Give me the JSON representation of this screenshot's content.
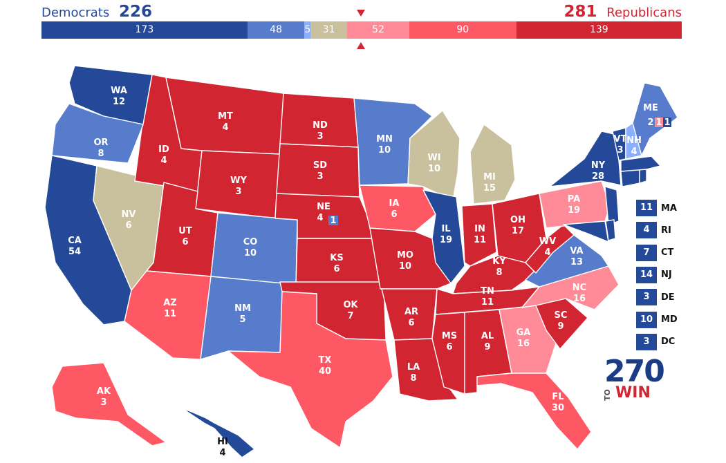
{
  "header": {
    "dem_label": "Democrats",
    "dem_total": "226",
    "rep_total": "281",
    "rep_label": "Republicans"
  },
  "colors": {
    "safe_d": "#244999",
    "likely_d": "#577ccc",
    "lean_d": "#8aafff",
    "tossup": "#c9c09d",
    "lean_r": "#ff8b98",
    "likely_r": "#ff5865",
    "safe_r": "#d22532"
  },
  "summary_bar": [
    {
      "category": "safe_d",
      "value": 173,
      "label": "173"
    },
    {
      "category": "likely_d",
      "value": 48,
      "label": "48"
    },
    {
      "category": "lean_d",
      "value": 5,
      "label": "5"
    },
    {
      "category": "tossup",
      "value": 31,
      "label": "31"
    },
    {
      "category": "lean_r",
      "value": 52,
      "label": "52"
    },
    {
      "category": "likely_r",
      "value": 90,
      "label": "90"
    },
    {
      "category": "safe_r",
      "value": 139,
      "label": "139"
    }
  ],
  "states": [
    {
      "code": "WA",
      "ev": "12",
      "rating": "safe_d"
    },
    {
      "code": "OR",
      "ev": "8",
      "rating": "likely_d"
    },
    {
      "code": "CA",
      "ev": "54",
      "rating": "safe_d"
    },
    {
      "code": "NV",
      "ev": "6",
      "rating": "tossup"
    },
    {
      "code": "ID",
      "ev": "4",
      "rating": "safe_r"
    },
    {
      "code": "MT",
      "ev": "4",
      "rating": "safe_r"
    },
    {
      "code": "WY",
      "ev": "3",
      "rating": "safe_r"
    },
    {
      "code": "UT",
      "ev": "6",
      "rating": "safe_r"
    },
    {
      "code": "AZ",
      "ev": "11",
      "rating": "likely_r"
    },
    {
      "code": "CO",
      "ev": "10",
      "rating": "likely_d"
    },
    {
      "code": "NM",
      "ev": "5",
      "rating": "likely_d"
    },
    {
      "code": "ND",
      "ev": "3",
      "rating": "safe_r"
    },
    {
      "code": "SD",
      "ev": "3",
      "rating": "safe_r"
    },
    {
      "code": "NE",
      "ev": "4",
      "rating": "safe_r"
    },
    {
      "code": "KS",
      "ev": "6",
      "rating": "safe_r"
    },
    {
      "code": "OK",
      "ev": "7",
      "rating": "safe_r"
    },
    {
      "code": "TX",
      "ev": "40",
      "rating": "likely_r"
    },
    {
      "code": "MN",
      "ev": "10",
      "rating": "likely_d"
    },
    {
      "code": "IA",
      "ev": "6",
      "rating": "likely_r"
    },
    {
      "code": "MO",
      "ev": "10",
      "rating": "safe_r"
    },
    {
      "code": "AR",
      "ev": "6",
      "rating": "safe_r"
    },
    {
      "code": "LA",
      "ev": "8",
      "rating": "safe_r"
    },
    {
      "code": "WI",
      "ev": "10",
      "rating": "tossup"
    },
    {
      "code": "IL",
      "ev": "19",
      "rating": "safe_d"
    },
    {
      "code": "MI",
      "ev": "15",
      "rating": "tossup"
    },
    {
      "code": "IN",
      "ev": "11",
      "rating": "safe_r"
    },
    {
      "code": "OH",
      "ev": "17",
      "rating": "safe_r"
    },
    {
      "code": "KY",
      "ev": "8",
      "rating": "safe_r"
    },
    {
      "code": "TN",
      "ev": "11",
      "rating": "safe_r"
    },
    {
      "code": "MS",
      "ev": "6",
      "rating": "safe_r"
    },
    {
      "code": "AL",
      "ev": "9",
      "rating": "safe_r"
    },
    {
      "code": "GA",
      "ev": "16",
      "rating": "lean_r"
    },
    {
      "code": "FL",
      "ev": "30",
      "rating": "likely_r"
    },
    {
      "code": "SC",
      "ev": "9",
      "rating": "safe_r"
    },
    {
      "code": "NC",
      "ev": "16",
      "rating": "lean_r"
    },
    {
      "code": "VA",
      "ev": "13",
      "rating": "likely_d"
    },
    {
      "code": "WV",
      "ev": "4",
      "rating": "safe_r"
    },
    {
      "code": "PA",
      "ev": "19",
      "rating": "lean_r"
    },
    {
      "code": "NY",
      "ev": "28",
      "rating": "safe_d"
    },
    {
      "code": "VT",
      "ev": "3",
      "rating": "safe_d"
    },
    {
      "code": "NH",
      "ev": "4",
      "rating": "lean_d"
    },
    {
      "code": "ME",
      "ev": "",
      "rating": "likely_d"
    },
    {
      "code": "AK",
      "ev": "3",
      "rating": "likely_r"
    },
    {
      "code": "HI",
      "ev": "4",
      "rating": "safe_d"
    }
  ],
  "maine_districts": [
    "2",
    "1",
    "1"
  ],
  "nebraska_district": "1",
  "northeast_boxes": [
    {
      "code": "MA",
      "ev": "11"
    },
    {
      "code": "RI",
      "ev": "4"
    },
    {
      "code": "CT",
      "ev": "7"
    },
    {
      "code": "NJ",
      "ev": "14"
    },
    {
      "code": "DE",
      "ev": "3"
    },
    {
      "code": "MD",
      "ev": "10"
    },
    {
      "code": "DC",
      "ev": "3"
    }
  ],
  "logo": {
    "number": "270",
    "to": "TO",
    "win": "WIN"
  }
}
